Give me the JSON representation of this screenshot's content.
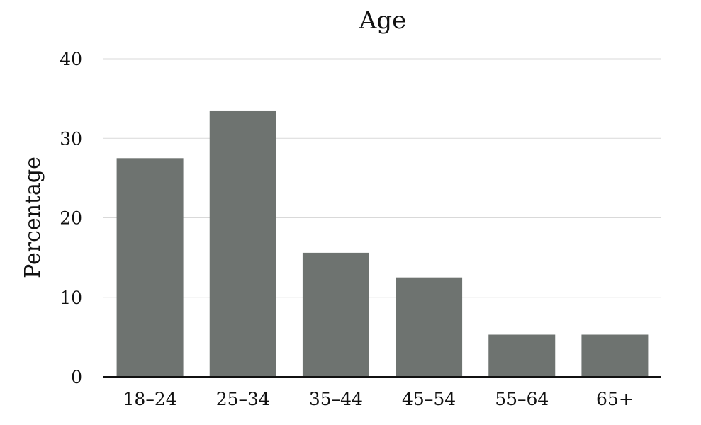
{
  "chart_data": {
    "type": "bar",
    "title": "Age",
    "xlabel": "",
    "ylabel": "Percentage",
    "categories": [
      "18–24",
      "25–34",
      "35–44",
      "45–54",
      "55–64",
      "65+"
    ],
    "values": [
      27.5,
      33.5,
      15.6,
      12.5,
      5.3,
      5.3
    ],
    "ylim": [
      0,
      40
    ],
    "yticks": [
      0,
      10,
      20,
      30,
      40
    ],
    "grid": true,
    "bar_color": "#6e7370",
    "legend": "none"
  }
}
